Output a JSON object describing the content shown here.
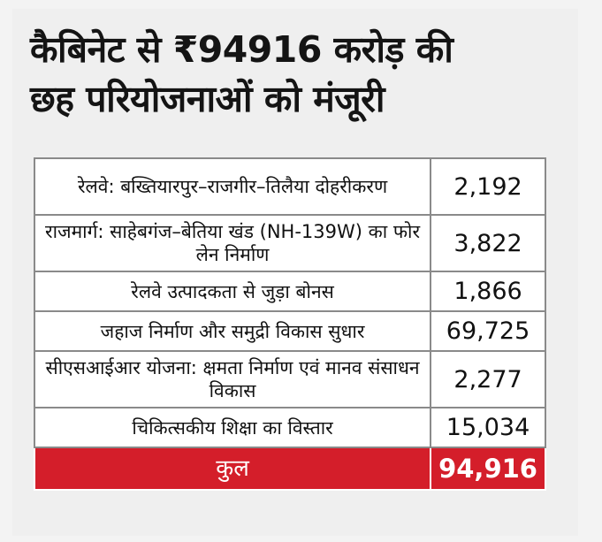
{
  "headline": {
    "line1": "कैबिनेट से ₹94916 करोड़ की",
    "line2": "छह परियोजनाओं को मंजूरी"
  },
  "projects": [
    {
      "name": "रेलवे: बख्तियारपुर–राजगीर–तिलैया दोहरीकरण",
      "amount": "2,192"
    },
    {
      "name": "राजमार्ग: साहेबगंज–बेतिया खंड (NH-139W) का फोर लेन निर्माण",
      "amount": "3,822"
    },
    {
      "name": "रेलवे उत्पादकता से जुड़ा बोनस",
      "amount": "1,866"
    },
    {
      "name": "जहाज निर्माण और समुद्री विकास सुधार",
      "amount": "69,725"
    },
    {
      "name": "सीएसआईआर योजना: क्षमता निर्माण एवं मानव संसाधन विकास",
      "amount": "2,277"
    },
    {
      "name": "चिकित्सकीय शिक्षा का विस्तार",
      "amount": "15,034"
    }
  ],
  "total": {
    "label": "कुल",
    "amount": "94,916"
  },
  "colors": {
    "total_row": "#d41e2a",
    "headline": "#141414"
  }
}
